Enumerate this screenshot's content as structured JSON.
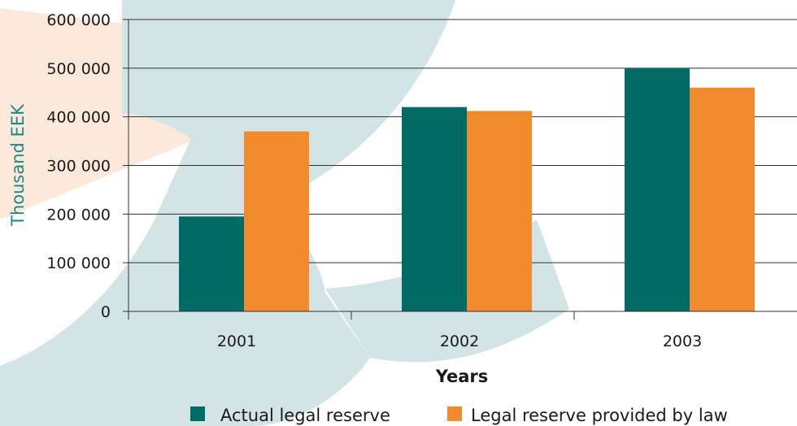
{
  "colors": {
    "series_actual": "#006a64",
    "series_law": "#f28a2e",
    "y_title": "#1c8a84",
    "grid": "#333333",
    "watermark_teal": "#d3e4e6",
    "watermark_peach": "#fde9dc"
  },
  "chart_data": {
    "type": "bar",
    "title": "",
    "xlabel": "Years",
    "ylabel": "Thousand EEK",
    "categories": [
      "2001",
      "2002",
      "2003"
    ],
    "ylim": [
      0,
      600000
    ],
    "yticks": [
      0,
      100000,
      200000,
      300000,
      400000,
      500000,
      600000
    ],
    "ytick_labels": [
      "0",
      "100 000",
      "200 000",
      "300 000",
      "400 000",
      "500 000",
      "600 000"
    ],
    "grid": true,
    "legend_position": "bottom",
    "series": [
      {
        "name": "Actual legal reserve",
        "values": [
          195000,
          420000,
          500000
        ]
      },
      {
        "name": "Legal reserve provided by law",
        "values": [
          370000,
          412000,
          460000
        ]
      }
    ]
  }
}
